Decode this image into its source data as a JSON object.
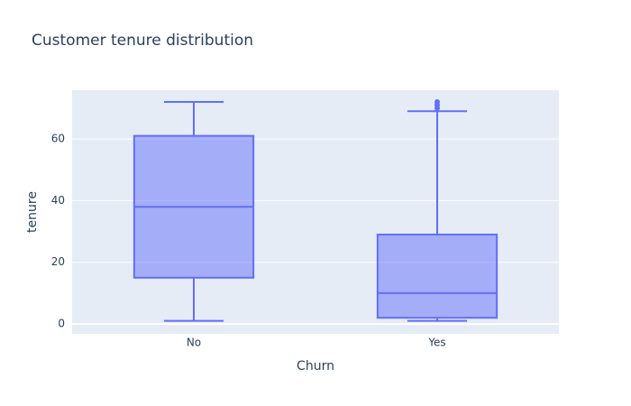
{
  "chart_data": {
    "type": "box",
    "title": "Customer tenure distribution",
    "x_label": "Churn",
    "y_label": "tenure",
    "categories": [
      "No",
      "Yes"
    ],
    "boxes": [
      {
        "min": 1,
        "q1": 15,
        "median": 38,
        "q3": 61,
        "max": 72,
        "outliers": []
      },
      {
        "min": 1,
        "q1": 2,
        "median": 10,
        "q3": 29,
        "max": 69,
        "outliers": [
          70,
          71,
          72
        ]
      }
    ],
    "color": "#636efa",
    "ylim": [
      -3.2,
      75.8
    ],
    "yticks": [
      0,
      20,
      40,
      60
    ],
    "grid": true
  }
}
